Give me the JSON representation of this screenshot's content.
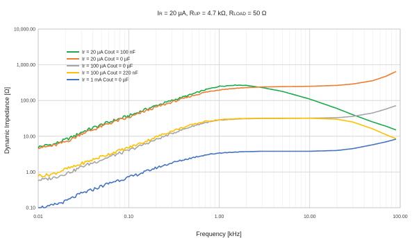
{
  "chart_data": {
    "type": "line",
    "title_parts": [
      {
        "text": "I",
        "small": false
      },
      {
        "text": "R",
        "small": true
      },
      {
        "text": " = 20 µA, R",
        "small": false
      },
      {
        "text": "UP",
        "small": true
      },
      {
        "text": " = 4.7 kΩ, R",
        "small": false
      },
      {
        "text": "LOAD",
        "small": true
      },
      {
        "text": " = 50 Ω",
        "small": false
      }
    ],
    "xlabel": "Frequency [kHz]",
    "ylabel": "Dynamic Impedance [Ω]",
    "x_scale": "log",
    "y_scale": "log",
    "xlim": [
      0.01,
      100
    ],
    "ylim": [
      0.1,
      10000
    ],
    "x_ticks": [
      0.01,
      0.1,
      1,
      10,
      100
    ],
    "x_tick_labels": [
      "0.01",
      "0.10",
      "1.00",
      "10.00",
      "100.00"
    ],
    "y_ticks": [
      0.1,
      1,
      10,
      100,
      1000,
      10000
    ],
    "y_tick_labels": [
      "0.10",
      "1.00",
      "10.00",
      "100.00",
      "1,000.00",
      "10,000.00"
    ],
    "grid": true,
    "legend_position": "top-left",
    "series": [
      {
        "name": "Ir = 20 µA Cout = 100 nF",
        "color": "#1aaa4c",
        "x": [
          0.01,
          0.012,
          0.015,
          0.02,
          0.025,
          0.03,
          0.04,
          0.05,
          0.07,
          0.1,
          0.15,
          0.2,
          0.3,
          0.5,
          0.7,
          1,
          1.5,
          2,
          3,
          5,
          10,
          20,
          30,
          50,
          70,
          90
        ],
        "y": [
          5,
          5.5,
          6,
          8,
          10,
          13,
          17,
          21,
          28,
          37,
          55,
          72,
          100,
          150,
          200,
          250,
          270,
          265,
          230,
          180,
          110,
          60,
          40,
          25,
          19,
          15
        ]
      },
      {
        "name": "Ir = 20 µA Cout = 0 µF",
        "color": "#ed7d31",
        "x": [
          0.01,
          0.012,
          0.015,
          0.02,
          0.025,
          0.03,
          0.04,
          0.05,
          0.07,
          0.1,
          0.15,
          0.2,
          0.3,
          0.5,
          0.7,
          1,
          1.5,
          2,
          3,
          5,
          10,
          20,
          30,
          50,
          70,
          90
        ],
        "y": [
          5,
          5,
          5.5,
          7,
          9,
          12,
          15,
          19,
          26,
          33,
          50,
          65,
          90,
          135,
          170,
          200,
          220,
          230,
          240,
          245,
          250,
          265,
          290,
          360,
          480,
          650
        ]
      },
      {
        "name": "Ir = 100 µA Cout = 0 µF",
        "color": "#a5a5a5",
        "x": [
          0.01,
          0.012,
          0.015,
          0.02,
          0.025,
          0.03,
          0.04,
          0.05,
          0.07,
          0.1,
          0.15,
          0.2,
          0.3,
          0.5,
          0.7,
          1,
          1.5,
          2,
          3,
          5,
          10,
          20,
          30,
          50,
          70,
          90
        ],
        "y": [
          0.6,
          0.62,
          0.7,
          0.9,
          1.1,
          1.4,
          1.8,
          2.2,
          3,
          4,
          6,
          8,
          12,
          19,
          24,
          28,
          30,
          31,
          31.5,
          31.5,
          32,
          33,
          36,
          45,
          58,
          72
        ]
      },
      {
        "name": "Ir = 100 µA Cout = 220 nF",
        "color": "#ffc000",
        "x": [
          0.01,
          0.012,
          0.015,
          0.02,
          0.025,
          0.03,
          0.04,
          0.05,
          0.07,
          0.1,
          0.15,
          0.2,
          0.3,
          0.5,
          0.7,
          1,
          1.5,
          2,
          3,
          5,
          10,
          20,
          30,
          50,
          70,
          90
        ],
        "y": [
          0.8,
          0.8,
          0.9,
          1.2,
          1.4,
          1.7,
          2.2,
          2.7,
          3.6,
          4.8,
          7,
          9.5,
          14,
          21,
          26,
          29,
          31,
          31.5,
          32,
          32,
          32,
          30,
          25,
          16,
          11,
          8.5
        ]
      },
      {
        "name": "Ir = 1 mA Cout = 0 µF",
        "color": "#4472c4",
        "x": [
          0.01,
          0.012,
          0.015,
          0.02,
          0.025,
          0.03,
          0.04,
          0.05,
          0.07,
          0.1,
          0.15,
          0.2,
          0.3,
          0.5,
          0.7,
          1,
          1.5,
          2,
          3,
          5,
          10,
          20,
          30,
          50,
          70,
          90
        ],
        "y": [
          0.11,
          0.1,
          0.12,
          0.15,
          0.2,
          0.25,
          0.32,
          0.4,
          0.55,
          0.7,
          1.0,
          1.3,
          1.8,
          2.5,
          3.0,
          3.4,
          3.6,
          3.7,
          3.8,
          3.8,
          3.8,
          4.0,
          4.5,
          5.8,
          7.0,
          8.3
        ]
      }
    ]
  }
}
